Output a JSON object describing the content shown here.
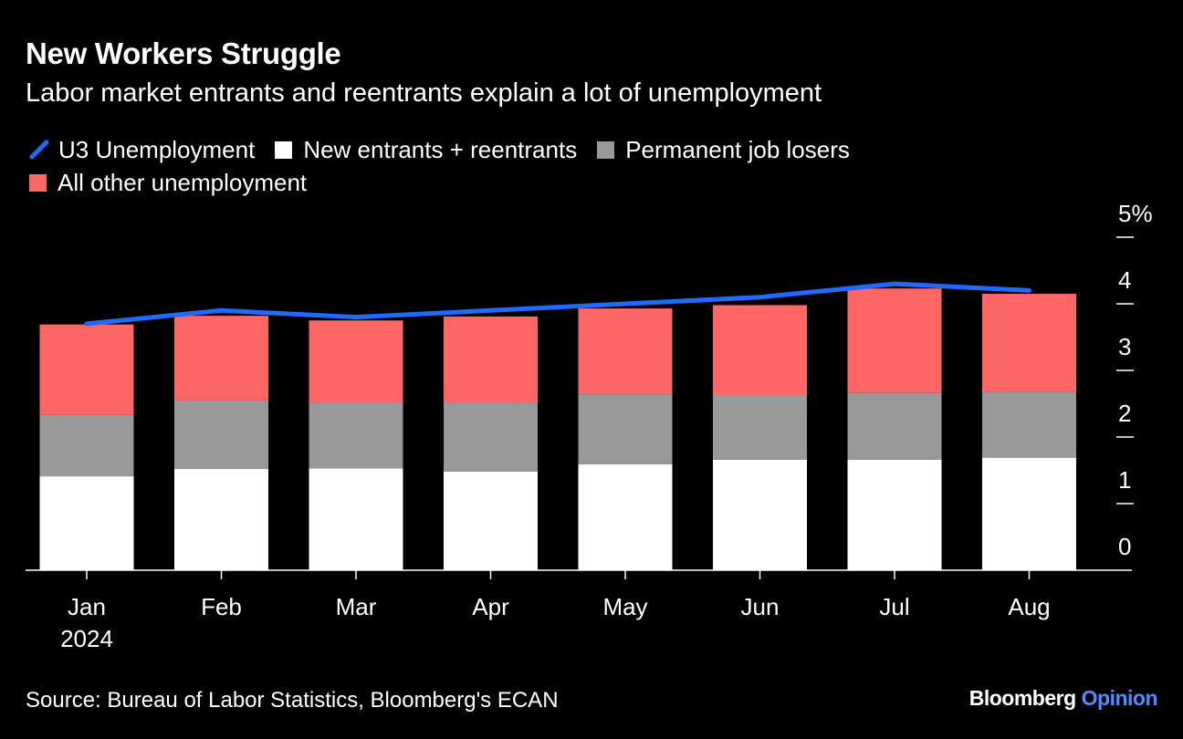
{
  "title": "New Workers Struggle",
  "subtitle": "Labor market entrants and reentrants explain a lot of unemployment",
  "source": "Source: Bureau of Labor Statistics, Bloomberg's ECAN",
  "brand": {
    "name": "Bloomberg",
    "product": "Opinion"
  },
  "colors": {
    "u3": "#1f6bff",
    "new_entrants": "#ffffff",
    "permanent": "#999999",
    "other": "#ff6666",
    "axis": "#ffffff",
    "background": "#000000"
  },
  "legend": [
    {
      "label": "U3 Unemployment",
      "icon": "line-swatch-icon",
      "color": "#1f6bff"
    },
    {
      "label": "New entrants + reentrants",
      "icon": "square-swatch-icon",
      "color": "#ffffff"
    },
    {
      "label": "Permanent job losers",
      "icon": "square-swatch-icon",
      "color": "#999999"
    },
    {
      "label": "All other unemployment",
      "icon": "square-swatch-icon",
      "color": "#ff6666"
    }
  ],
  "chart_data": {
    "type": "bar",
    "stacked": true,
    "categories": [
      "Jan",
      "Feb",
      "Mar",
      "Apr",
      "May",
      "Jun",
      "Jul",
      "Aug"
    ],
    "x_tick_labels": [
      "Jan",
      "Feb",
      "Mar",
      "Apr",
      "May",
      "Jun",
      "Jul",
      "Aug"
    ],
    "x_year_label": "2024",
    "series": [
      {
        "name": "New entrants + reentrants",
        "values": [
          1.41,
          1.52,
          1.53,
          1.48,
          1.59,
          1.66,
          1.66,
          1.69
        ]
      },
      {
        "name": "Permanent job losers",
        "values": [
          0.92,
          1.03,
          0.99,
          1.04,
          1.05,
          0.97,
          1.0,
          0.99
        ]
      },
      {
        "name": "All other unemployment",
        "values": [
          1.36,
          1.27,
          1.23,
          1.29,
          1.29,
          1.35,
          1.57,
          1.47
        ]
      }
    ],
    "line_series": {
      "name": "U3 Unemployment",
      "values": [
        3.7,
        3.9,
        3.8,
        3.9,
        4.0,
        4.1,
        4.3,
        4.2
      ]
    },
    "y_ticks": [
      "0",
      "1",
      "2",
      "3",
      "4",
      "5%"
    ],
    "ylim": [
      0,
      5
    ],
    "y_axis_side": "right",
    "grid": false,
    "legend_position": "top-left"
  }
}
